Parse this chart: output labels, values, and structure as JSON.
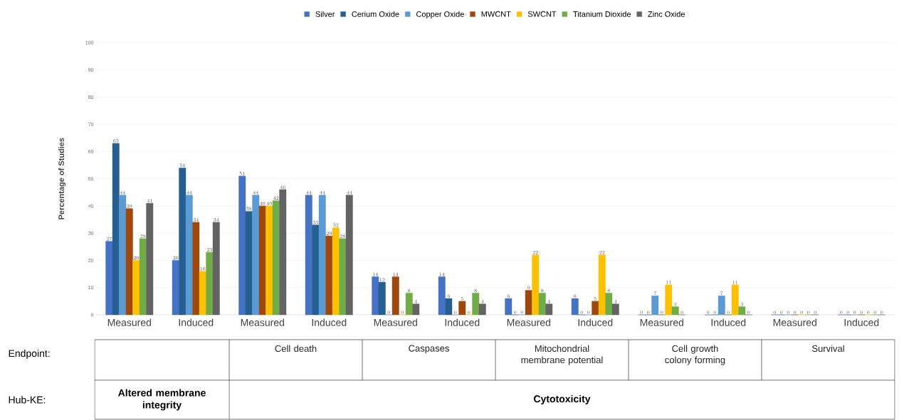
{
  "chart_data": {
    "type": "bar",
    "ylabel": "Percentage of Studies",
    "categories": [
      "Measured",
      "Induced",
      "Measured",
      "Induced",
      "Measured",
      "Induced",
      "Measured",
      "Induced",
      "Measured",
      "Induced",
      "Measured",
      "Induced"
    ],
    "series": [
      {
        "name": "Silver",
        "color": "#4472c4",
        "values": [
          27,
          20,
          51,
          44,
          14,
          14,
          6,
          6,
          0,
          0,
          0,
          0
        ]
      },
      {
        "name": "Cerium Oxide",
        "color": "#255e91",
        "values": [
          63,
          54,
          38,
          33,
          12,
          6,
          0,
          0,
          0,
          0,
          0,
          0
        ]
      },
      {
        "name": "Copper Oxide",
        "color": "#5b9bd5",
        "values": [
          44,
          44,
          44,
          44,
          0,
          0,
          0,
          0,
          7,
          7,
          0,
          0
        ]
      },
      {
        "name": "MWCNT",
        "color": "#9e480e",
        "values": [
          39,
          34,
          40,
          29,
          14,
          5,
          9,
          5,
          0,
          0,
          0,
          0
        ]
      },
      {
        "name": "SWCNT",
        "color": "#ffc000",
        "values": [
          20,
          16,
          40,
          32,
          0,
          0,
          22,
          22,
          11,
          11,
          0,
          0
        ]
      },
      {
        "name": "Titanium Dioxide",
        "color": "#70ad47",
        "values": [
          28,
          23,
          42,
          28,
          8,
          8,
          8,
          8,
          3,
          3,
          0,
          0
        ]
      },
      {
        "name": "Zinc Oxide",
        "color": "#636363",
        "values": [
          41,
          34,
          46,
          44,
          4,
          4,
          4,
          4,
          0,
          0,
          0,
          0
        ]
      }
    ],
    "ylim": [
      0,
      100
    ],
    "yticks": [
      0,
      10,
      20,
      30,
      40,
      50,
      60,
      70,
      80,
      90,
      100
    ],
    "grid": "y",
    "legend": "top",
    "data_labels": true,
    "annotations": [
      "Endpoint:",
      "Cell death",
      "Caspases",
      "Mitochondrial membrane potential",
      "Cell growth colony forming",
      "Survival",
      "Hub-KE:",
      "Altered membrane integrity",
      "Cytotoxicity"
    ]
  }
}
